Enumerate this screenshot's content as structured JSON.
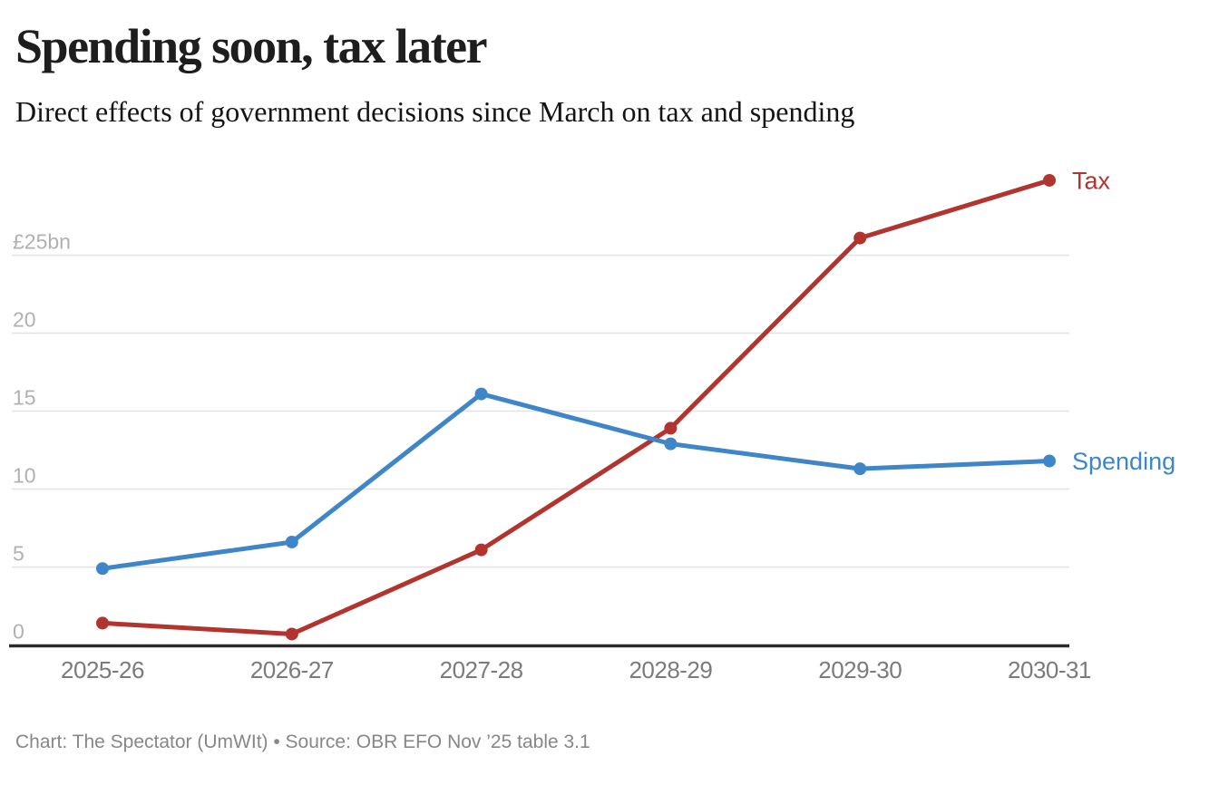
{
  "header": {
    "title": "Spending soon, tax later",
    "subtitle": "Direct effects of government decisions since March on tax and spending"
  },
  "footer": {
    "credit": "Chart: The Spectator (UmWIt) • Source: OBR EFO Nov ’25 table 3.1"
  },
  "chart_data": {
    "type": "line",
    "title": "Spending soon, tax later",
    "subtitle": "Direct effects of government decisions since March on tax and spending",
    "categories": [
      "2025-26",
      "2026-27",
      "2027-28",
      "2028-29",
      "2029-30",
      "2030-31"
    ],
    "series": [
      {
        "name": "Tax",
        "color": "#b1352e",
        "values": [
          1.4,
          0.7,
          6.1,
          13.9,
          26.1,
          29.8
        ]
      },
      {
        "name": "Spending",
        "color": "#3e86c8",
        "values": [
          4.9,
          6.6,
          16.1,
          12.9,
          11.3,
          11.8
        ]
      }
    ],
    "y_ticks": [
      {
        "value": 0,
        "label": "0"
      },
      {
        "value": 5,
        "label": "5"
      },
      {
        "value": 10,
        "label": "10"
      },
      {
        "value": 15,
        "label": "15"
      },
      {
        "value": 20,
        "label": "20"
      },
      {
        "value": 25,
        "label": "£25bn"
      }
    ],
    "ylim": [
      0,
      30
    ],
    "grid": "horizontal",
    "legend_position": "end-of-line",
    "axis_color": "#2b2b2b",
    "gridline_color": "#e3e3e3"
  }
}
